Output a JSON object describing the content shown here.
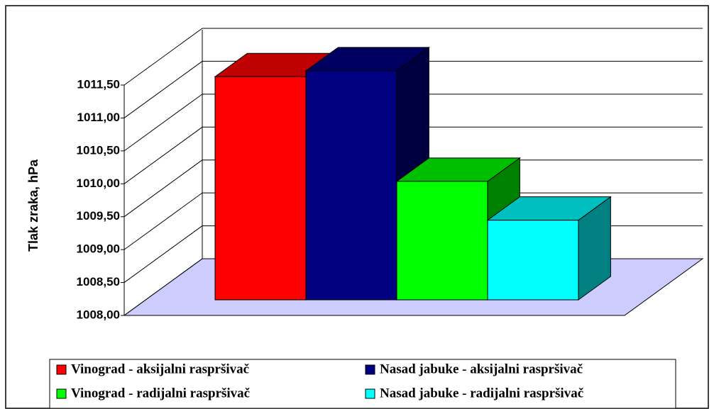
{
  "chart_data": {
    "type": "bar3d",
    "y_label": "Tlak zraka, hPa",
    "ylim": [
      1008,
      1011.5
    ],
    "yticks": [
      {
        "value": 1008,
        "label": "1008,00"
      },
      {
        "value": 1008.5,
        "label": "1008,50"
      },
      {
        "value": 1009,
        "label": "1009,00"
      },
      {
        "value": 1009.5,
        "label": "1009,50"
      },
      {
        "value": 1010,
        "label": "1010,00"
      },
      {
        "value": 1010.5,
        "label": "1010,50"
      },
      {
        "value": 1011,
        "label": "1011,00"
      },
      {
        "value": 1011.5,
        "label": "1011,50"
      }
    ],
    "grid": true,
    "series": [
      {
        "name": "Vinograd - aksijalni raspršivač",
        "color": "#ff0000",
        "values": [
          1011.39
        ]
      },
      {
        "name": "Nasad jabuke - aksijalni raspršivač",
        "color": "#000080",
        "values": [
          1011.48
        ]
      },
      {
        "name": "Vinograd - radijalni raspršivač",
        "color": "#00ff00",
        "values": [
          1009.8
        ]
      },
      {
        "name": "Nasad jabuke - radijalni raspršivač",
        "color": "#00ffff",
        "values": [
          1009.21
        ]
      }
    ]
  }
}
